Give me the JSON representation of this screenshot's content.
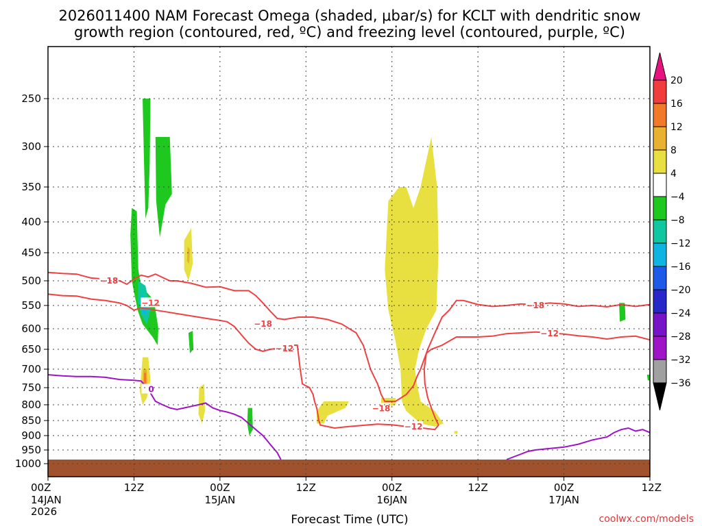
{
  "title_line1": "2026011400 NAM Forecast Omega (shaded, μbar/s) for KCLT with dendritic snow",
  "title_line2": "growth region (contoured, red, ºC) and freezing level (contoured, purple, ºC)",
  "credit": "coolwx.com/models",
  "chart_data": {
    "type": "heatmap",
    "title": "2026011400 NAM Forecast Omega (shaded, μbar/s) for KCLT with dendritic snow growth region (contoured, red, ºC) and freezing level (contoured, purple, ºC)",
    "xlabel": "Forecast Time (UTC)",
    "ylabel": "",
    "x_range_hours": [
      0,
      84
    ],
    "y_range_hpa": [
      1050,
      200
    ],
    "x_ticks": [
      {
        "hour": 0,
        "line1": "00Z",
        "line2": "14JAN",
        "line3": "2026"
      },
      {
        "hour": 12,
        "line1": "12Z",
        "line2": "",
        "line3": ""
      },
      {
        "hour": 24,
        "line1": "00Z",
        "line2": "15JAN",
        "line3": ""
      },
      {
        "hour": 36,
        "line1": "12Z",
        "line2": "",
        "line3": ""
      },
      {
        "hour": 48,
        "line1": "00Z",
        "line2": "16JAN",
        "line3": ""
      },
      {
        "hour": 60,
        "line1": "12Z",
        "line2": "",
        "line3": ""
      },
      {
        "hour": 72,
        "line1": "00Z",
        "line2": "17JAN",
        "line3": ""
      },
      {
        "hour": 84,
        "line1": "12Z",
        "line2": "",
        "line3": ""
      }
    ],
    "y_ticks": [
      "250",
      "300",
      "350",
      "400",
      "450",
      "500",
      "550",
      "600",
      "650",
      "700",
      "750",
      "800",
      "850",
      "900",
      "950",
      "1000"
    ],
    "colorbar": {
      "labels": [
        "20",
        "16",
        "12",
        "8",
        "4",
        "−4",
        "−8",
        "−12",
        "−16",
        "−20",
        "−24",
        "−28",
        "−32",
        "−36"
      ],
      "colors": [
        "#e8127e",
        "#f03c3c",
        "#f07a28",
        "#e8b230",
        "#e8e040",
        "#ffffff",
        "#1ec81e",
        "#10c8a0",
        "#10b4e0",
        "#1e5ae8",
        "#2828c8",
        "#7814c8",
        "#a014c8",
        "#a0a0a0",
        "#000000"
      ]
    },
    "contours": [
      {
        "name": "-18 C",
        "color": "#f04040",
        "label": "−18",
        "label_points": [
          [
            8.5,
            500
          ],
          [
            30,
            590
          ],
          [
            46.5,
            820
          ],
          [
            68,
            555
          ]
        ],
        "points": [
          [
            0,
            485
          ],
          [
            4,
            480
          ],
          [
            8,
            495
          ],
          [
            12,
            505
          ],
          [
            14,
            495
          ],
          [
            15,
            500
          ],
          [
            16,
            485
          ],
          [
            18,
            495
          ],
          [
            20,
            505
          ],
          [
            24,
            512
          ],
          [
            28,
            518
          ],
          [
            30,
            535
          ],
          [
            34,
            560
          ],
          [
            36,
            580
          ],
          [
            38,
            577
          ],
          [
            42,
            577
          ],
          [
            45,
            595
          ],
          [
            48,
            620
          ],
          [
            54,
            650
          ],
          [
            60,
            680
          ],
          [
            66,
            720
          ],
          [
            72,
            770
          ],
          [
            78,
            800
          ],
          [
            80,
            780
          ],
          [
            84,
            800
          ]
        ]
      }
    ],
    "ground_hpa": 985
  }
}
